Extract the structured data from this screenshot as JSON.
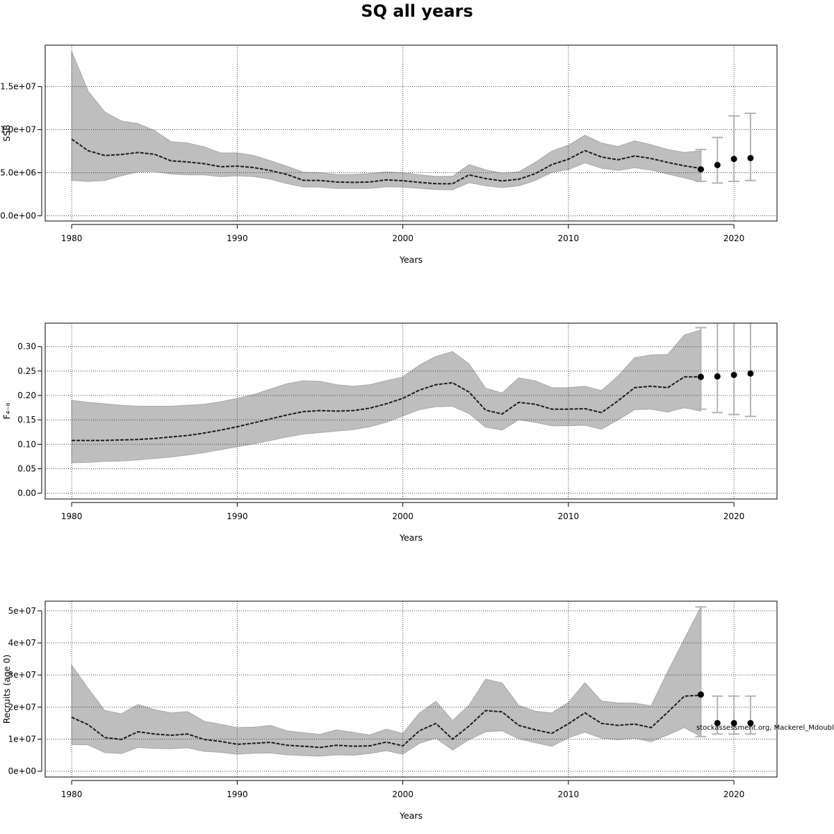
{
  "chart_data": [
    {
      "type": "line",
      "title": "SQ all years",
      "xlabel": "Years",
      "ylabel": "SSB",
      "xlim": [
        1978.4,
        2022.6
      ],
      "ylim": [
        -600000.0,
        19800000.0
      ],
      "xticks": [
        1980,
        1990,
        2000,
        2010,
        2020
      ],
      "xtick_labels": [
        "1980",
        "1990",
        "2000",
        "2010",
        "2020"
      ],
      "yticks": [
        0,
        5000000,
        10000000,
        15000000
      ],
      "ytick_labels": [
        "0.0e+00",
        "5.0e+06",
        "1.0e+07",
        "1.5e+07"
      ],
      "grid": true,
      "x": [
        1980,
        1981,
        1982,
        1983,
        1984,
        1985,
        1986,
        1987,
        1988,
        1989,
        1990,
        1991,
        1992,
        1993,
        1994,
        1995,
        1996,
        1997,
        1998,
        1999,
        2000,
        2001,
        2002,
        2003,
        2004,
        2005,
        2006,
        2007,
        2008,
        2009,
        2010,
        2011,
        2012,
        2013,
        2014,
        2015,
        2016,
        2017,
        2018
      ],
      "series": [
        {
          "values": [
            8900000,
            7550000,
            7000000,
            7120000,
            7350000,
            7150000,
            6380000,
            6250000,
            6050000,
            5700000,
            5770000,
            5600000,
            5250000,
            4800000,
            4120000,
            4100000,
            3920000,
            3880000,
            3920000,
            4170000,
            4080000,
            3880000,
            3730000,
            3720000,
            4750000,
            4330000,
            4050000,
            4250000,
            4900000,
            5950000,
            6570000,
            7570000,
            6830000,
            6500000,
            6950000,
            6650000,
            6200000,
            5800000,
            5500000
          ],
          "lower": [
            4100000,
            4000000,
            4100000,
            4650000,
            5100000,
            5150000,
            4850000,
            4750000,
            4750000,
            4550000,
            4650000,
            4550000,
            4250000,
            3750000,
            3350000,
            3330000,
            3180000,
            3180000,
            3180000,
            3370000,
            3330000,
            3200000,
            3050000,
            3020000,
            3850000,
            3500000,
            3280000,
            3470000,
            4100000,
            5050000,
            5350000,
            6150000,
            5530000,
            5280000,
            5580000,
            5300000,
            4850000,
            4400000,
            3950000
          ],
          "upper": [
            19100000,
            14450000,
            12050000,
            11000000,
            10700000,
            9900000,
            8600000,
            8450000,
            8000000,
            7300000,
            7300000,
            7000000,
            6400000,
            5750000,
            5050000,
            5000000,
            4800000,
            4800000,
            4900000,
            5100000,
            5000000,
            4750000,
            4580000,
            4580000,
            5950000,
            5350000,
            4950000,
            5100000,
            6200000,
            7500000,
            8200000,
            9350000,
            8450000,
            8050000,
            8700000,
            8250000,
            7700000,
            7350000,
            7550000
          ]
        },
        {
          "type": "projection",
          "x": [
            2018,
            2019,
            2020,
            2021
          ],
          "values": [
            5400000,
            5900000,
            6600000,
            6700000
          ],
          "lower": [
            4000000,
            3800000,
            4000000,
            4100000
          ],
          "upper": [
            7700000,
            9100000,
            11600000,
            11900000
          ]
        }
      ]
    },
    {
      "type": "line",
      "xlabel": "Years",
      "ylabel": "F₄₋₈",
      "xlim": [
        1978.4,
        2022.6
      ],
      "ylim": [
        -0.012,
        0.348
      ],
      "xticks": [
        1980,
        1990,
        2000,
        2010,
        2020
      ],
      "xtick_labels": [
        "1980",
        "1990",
        "2000",
        "2010",
        "2020"
      ],
      "yticks": [
        0,
        0.05,
        0.1,
        0.15,
        0.2,
        0.25,
        0.3
      ],
      "ytick_labels": [
        "0.00",
        "0.05",
        "0.10",
        "0.15",
        "0.20",
        "0.25",
        "0.30"
      ],
      "grid": true,
      "x": [
        1980,
        1981,
        1982,
        1983,
        1984,
        1985,
        1986,
        1987,
        1988,
        1989,
        1990,
        1991,
        1992,
        1993,
        1994,
        1995,
        1996,
        1997,
        1998,
        1999,
        2000,
        2001,
        2002,
        2003,
        2004,
        2005,
        2006,
        2007,
        2008,
        2009,
        2010,
        2011,
        2012,
        2013,
        2014,
        2015,
        2016,
        2017,
        2018
      ],
      "series": [
        {
          "values": [
            0.108,
            0.108,
            0.108,
            0.109,
            0.11,
            0.112,
            0.115,
            0.118,
            0.123,
            0.129,
            0.136,
            0.144,
            0.152,
            0.16,
            0.167,
            0.169,
            0.168,
            0.169,
            0.174,
            0.183,
            0.194,
            0.211,
            0.222,
            0.226,
            0.207,
            0.17,
            0.162,
            0.186,
            0.182,
            0.172,
            0.172,
            0.173,
            0.165,
            0.189,
            0.216,
            0.219,
            0.216,
            0.238,
            0.238
          ],
          "lower": [
            0.062,
            0.063,
            0.065,
            0.066,
            0.068,
            0.071,
            0.074,
            0.078,
            0.083,
            0.089,
            0.095,
            0.101,
            0.108,
            0.115,
            0.121,
            0.124,
            0.127,
            0.13,
            0.136,
            0.145,
            0.158,
            0.171,
            0.177,
            0.178,
            0.163,
            0.135,
            0.129,
            0.15,
            0.145,
            0.138,
            0.138,
            0.139,
            0.131,
            0.15,
            0.171,
            0.172,
            0.166,
            0.175,
            0.168
          ],
          "upper": [
            0.19,
            0.186,
            0.183,
            0.18,
            0.178,
            0.178,
            0.178,
            0.18,
            0.182,
            0.187,
            0.194,
            0.202,
            0.213,
            0.224,
            0.23,
            0.229,
            0.222,
            0.219,
            0.222,
            0.23,
            0.238,
            0.262,
            0.28,
            0.29,
            0.265,
            0.215,
            0.205,
            0.236,
            0.23,
            0.216,
            0.216,
            0.219,
            0.21,
            0.24,
            0.277,
            0.283,
            0.284,
            0.324,
            0.334
          ]
        },
        {
          "type": "projection",
          "x": [
            2018,
            2019,
            2020,
            2021
          ],
          "values": [
            0.238,
            0.239,
            0.242,
            0.245
          ],
          "lower": [
            0.172,
            0.165,
            0.161,
            0.157
          ],
          "upper": [
            0.339,
            0.4,
            0.4,
            0.4
          ]
        }
      ]
    },
    {
      "type": "line",
      "xlabel": "Years",
      "ylabel": "Recruits (age 0)",
      "xlim": [
        1978.4,
        2022.6
      ],
      "ylim": [
        -1800000.0,
        53000000.0
      ],
      "xticks": [
        1980,
        1990,
        2000,
        2010,
        2020
      ],
      "xtick_labels": [
        "1980",
        "1990",
        "2000",
        "2010",
        "2020"
      ],
      "yticks": [
        0,
        10000000,
        20000000,
        30000000,
        40000000,
        50000000
      ],
      "ytick_labels": [
        "0e+00",
        "1e+07",
        "2e+07",
        "3e+07",
        "4e+07",
        "5e+07"
      ],
      "grid": true,
      "x": [
        1980,
        1981,
        1982,
        1983,
        1984,
        1985,
        1986,
        1987,
        1988,
        1989,
        1990,
        1991,
        1992,
        1993,
        1994,
        1995,
        1996,
        1997,
        1998,
        1999,
        2000,
        2001,
        2002,
        2003,
        2004,
        2005,
        2006,
        2007,
        2008,
        2009,
        2010,
        2011,
        2012,
        2013,
        2014,
        2015,
        2016,
        2017,
        2018
      ],
      "series": [
        {
          "values": [
            16800000,
            14500000,
            10500000,
            9900000,
            12300000,
            11600000,
            11200000,
            11600000,
            9900000,
            9300000,
            8400000,
            8700000,
            9000000,
            8100000,
            7800000,
            7400000,
            8100000,
            7800000,
            7900000,
            9100000,
            7900000,
            12600000,
            14900000,
            10000000,
            14100000,
            18900000,
            18500000,
            14300000,
            12900000,
            11800000,
            14800000,
            18200000,
            14900000,
            14300000,
            14700000,
            13600000,
            18400000,
            23400000,
            23700000
          ],
          "lower": [
            8300000,
            8200000,
            5800000,
            5500000,
            7400000,
            7100000,
            7000000,
            7300000,
            6200000,
            5900000,
            5300000,
            5600000,
            5700000,
            5100000,
            4900000,
            4700000,
            5100000,
            5000000,
            5500000,
            6400000,
            5300000,
            8700000,
            10300000,
            6600000,
            9800000,
            12300000,
            12600000,
            10100000,
            8900000,
            7800000,
            10400000,
            12200000,
            10300000,
            9800000,
            10300000,
            9200000,
            11300000,
            13600000,
            10800000
          ],
          "upper": [
            33000000,
            25800000,
            18900000,
            17900000,
            20800000,
            19200000,
            18200000,
            18600000,
            15600000,
            14600000,
            13600000,
            13700000,
            14300000,
            12600000,
            12000000,
            11500000,
            12900000,
            12100000,
            11300000,
            13100000,
            11800000,
            18100000,
            21800000,
            15800000,
            20600000,
            28700000,
            27500000,
            20500000,
            18700000,
            18200000,
            21400000,
            27600000,
            21900000,
            21300000,
            21200000,
            20400000,
            31100000,
            41200000,
            51200000
          ]
        },
        {
          "type": "projection",
          "x": [
            2018,
            2019,
            2020,
            2021
          ],
          "values": [
            23900000,
            15000000,
            15000000,
            15000000
          ],
          "lower": [
            10800000,
            11600000,
            11600000,
            11600000
          ],
          "upper": [
            51200000,
            23400000,
            23400000,
            23400000
          ]
        }
      ]
    }
  ],
  "credit": "stockassessment.org, Mackerel_Mdouble",
  "colors": {
    "band": "#bebebe",
    "band_edge": "#a8a8a8",
    "line": "#1a1a1a",
    "errorbar": "#b3b3b3",
    "grid": "#3f3f3f"
  }
}
